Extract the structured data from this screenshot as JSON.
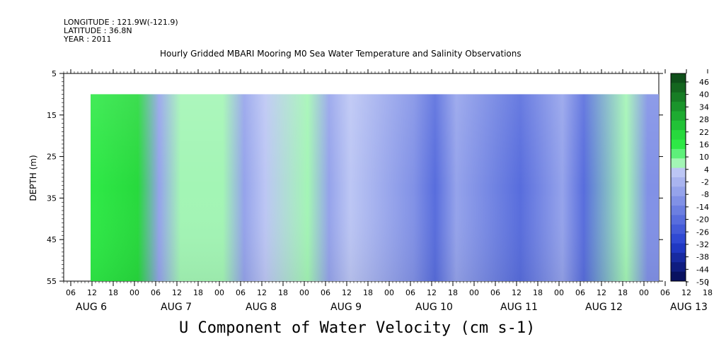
{
  "header": {
    "longitude": "LONGITUDE : 121.9W(-121.9)",
    "latitude": "LATITUDE : 36.8N",
    "year": "YEAR : 2011"
  },
  "chart_data": {
    "type": "heatmap",
    "title": "Hourly Gridded MBARI Mooring M0 Sea Water Temperature and Salinity Observations",
    "xlabel": "U Component of Water Velocity (cm s-1)",
    "ylabel": "DEPTH (m)",
    "y_ticks": [
      "5",
      "15",
      "25",
      "35",
      "45",
      "55"
    ],
    "ylim": [
      5,
      55
    ],
    "y_inverted": true,
    "data_depth_range": [
      10,
      55
    ],
    "x_hour_ticks": [
      "06",
      "12",
      "18",
      "00",
      "06",
      "12",
      "18",
      "00",
      "06",
      "12",
      "18",
      "00",
      "06",
      "12",
      "18",
      "00",
      "06",
      "12",
      "18",
      "00",
      "06",
      "12",
      "18",
      "00",
      "06",
      "12",
      "18",
      "00",
      "06",
      "12",
      "18",
      "00"
    ],
    "x_day_labels": [
      "AUG 6",
      "AUG 7",
      "AUG 8",
      "AUG 9",
      "AUG 10",
      "AUG 11",
      "AUG 12",
      "AUG 13"
    ],
    "colorbar_labels": [
      "46",
      "40",
      "34",
      "28",
      "22",
      "16",
      "10",
      "4",
      "-2",
      "-8",
      "-14",
      "-20",
      "-26",
      "-32",
      "-38",
      "-44",
      "-50"
    ],
    "colorbar_colors": [
      "#0f4f1a",
      "#14661f",
      "#177d25",
      "#1a942b",
      "#1eab31",
      "#22c237",
      "#27d93d",
      "#2ee846",
      "#5ef07a",
      "#a3f5b5",
      "#bcc6f4",
      "#a9b4ef",
      "#95a3eb",
      "#8191e6",
      "#6c7fe1",
      "#586ddd",
      "#445bd8",
      "#3049d3",
      "#2038c2",
      "#172aa0",
      "#0f1d80",
      "#081160"
    ],
    "series": [
      {
        "time": "2011-08-06 12:00",
        "u": 18
      },
      {
        "time": "2011-08-07 00:00",
        "u": 20
      },
      {
        "time": "2011-08-07 06:00",
        "u": -4
      },
      {
        "time": "2011-08-07 12:00",
        "u": 6
      },
      {
        "time": "2011-08-08 00:00",
        "u": 8
      },
      {
        "time": "2011-08-08 06:00",
        "u": -4
      },
      {
        "time": "2011-08-08 12:00",
        "u": 4
      },
      {
        "time": "2011-08-09 00:00",
        "u": 10
      },
      {
        "time": "2011-08-09 06:00",
        "u": -6
      },
      {
        "time": "2011-08-09 12:00",
        "u": 2
      },
      {
        "time": "2011-08-10 06:00",
        "u": -12
      },
      {
        "time": "2011-08-10 12:00",
        "u": -20
      },
      {
        "time": "2011-08-10 18:00",
        "u": -6
      },
      {
        "time": "2011-08-11 06:00",
        "u": -14
      },
      {
        "time": "2011-08-11 12:00",
        "u": -22
      },
      {
        "time": "2011-08-12 00:00",
        "u": -8
      },
      {
        "time": "2011-08-12 06:00",
        "u": -20
      },
      {
        "time": "2011-08-12 18:00",
        "u": 8
      },
      {
        "time": "2011-08-13 00:00",
        "u": -10
      }
    ]
  }
}
